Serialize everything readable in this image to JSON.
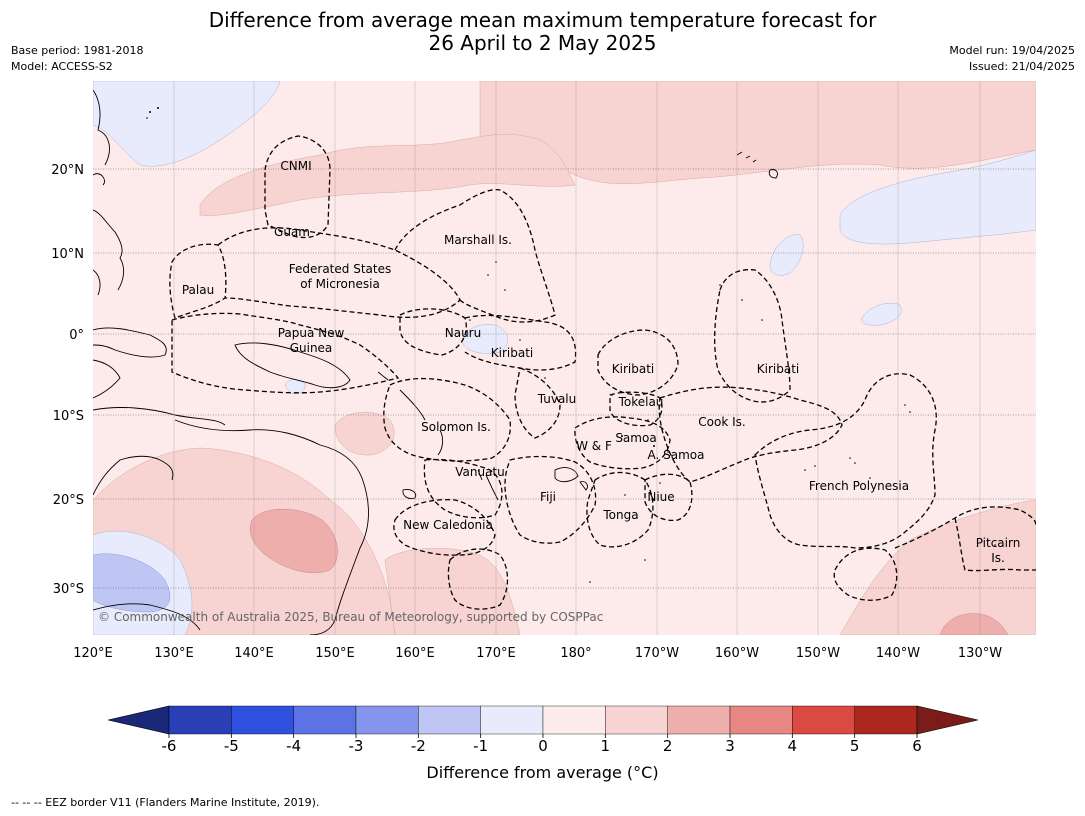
{
  "title": {
    "line1": "Difference from average mean maximum temperature forecast for",
    "line2": "26 April to 2 May 2025"
  },
  "meta": {
    "base_period": "Base period: 1981-2018",
    "model": "Model: ACCESS-S2",
    "model_run": "Model run: 19/04/2025",
    "issued": "Issued: 21/04/2025"
  },
  "map": {
    "lon_ticks": [
      "120°E",
      "130°E",
      "140°E",
      "150°E",
      "160°E",
      "170°E",
      "180°",
      "170°W",
      "160°W",
      "150°W",
      "140°W",
      "130°W"
    ],
    "lat_ticks": [
      "20°N",
      "10°N",
      "0°",
      "10°S",
      "20°S",
      "30°S"
    ],
    "copyright": "© Commonwealth of Australia 2025, Bureau of Meteorology, supported by COSPPac",
    "regions": [
      {
        "key": "cnmi",
        "label": "CNMI"
      },
      {
        "key": "guam",
        "label": "Guam"
      },
      {
        "key": "marshall",
        "label": "Marshall Is."
      },
      {
        "key": "fsm1",
        "label": "Federated States"
      },
      {
        "key": "fsm2",
        "label": "of Micronesia"
      },
      {
        "key": "palau",
        "label": "Palau"
      },
      {
        "key": "png1",
        "label": "Papua New"
      },
      {
        "key": "png2",
        "label": "Guinea"
      },
      {
        "key": "nauru",
        "label": "Nauru"
      },
      {
        "key": "kiribati_w",
        "label": "Kiribati"
      },
      {
        "key": "kiribati_c",
        "label": "Kiribati"
      },
      {
        "key": "kiribati_e",
        "label": "Kiribati"
      },
      {
        "key": "tuvalu",
        "label": "Tuvalu"
      },
      {
        "key": "tokelau",
        "label": "Tokelau"
      },
      {
        "key": "cook",
        "label": "Cook Is."
      },
      {
        "key": "solomon",
        "label": "Solomon Is."
      },
      {
        "key": "wf",
        "label": "W & F"
      },
      {
        "key": "samoa",
        "label": "Samoa"
      },
      {
        "key": "asamoa",
        "label": "A. Samoa"
      },
      {
        "key": "vanuatu",
        "label": "Vanuatu"
      },
      {
        "key": "fiji",
        "label": "Fiji"
      },
      {
        "key": "niue",
        "label": "Niue"
      },
      {
        "key": "frenchpoly",
        "label": "French Polynesia"
      },
      {
        "key": "tonga",
        "label": "Tonga"
      },
      {
        "key": "newcal",
        "label": "New Caledonia"
      },
      {
        "key": "pitcairn1",
        "label": "Pitcairn"
      },
      {
        "key": "pitcairn2",
        "label": "Is."
      }
    ]
  },
  "colorbar": {
    "ticks": [
      "-6",
      "-5",
      "-4",
      "-3",
      "-2",
      "-1",
      "0",
      "1",
      "2",
      "3",
      "4",
      "5",
      "6"
    ],
    "colors": [
      "#283fb5",
      "#2f50e0",
      "#5b73e4",
      "#8595ec",
      "#bfc6f4",
      "#e8ebfb",
      "#fcebea",
      "#f7d3d2",
      "#eeaeac",
      "#e78683",
      "#da4a43",
      "#ab2820"
    ],
    "under_color": "#1b2879",
    "over_color": "#7a1c1a",
    "label": "Difference from average (°C)"
  },
  "footnote": "--  --  -- EEZ border V11 (Flanders Marine Institute, 2019)."
}
